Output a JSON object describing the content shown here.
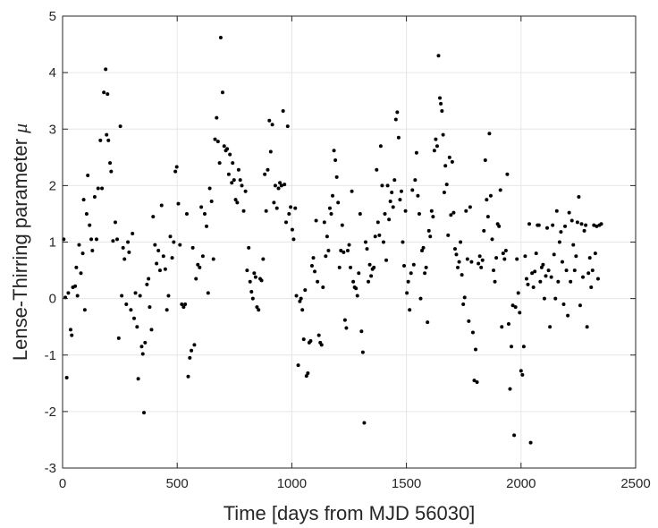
{
  "chart_data": {
    "type": "scatter",
    "xlabel": "Time [days from MJD 56030]",
    "ylabel": "Lense-Thirring parameter",
    "ylabel_symbol": "μ",
    "xlim": [
      0,
      2500
    ],
    "ylim": [
      -3,
      5
    ],
    "x_ticks": [
      "0",
      "500",
      "1000",
      "1500",
      "2000",
      "2500"
    ],
    "y_ticks": [
      "-3",
      "-2",
      "-1",
      "0",
      "1",
      "2",
      "3",
      "4",
      "5"
    ],
    "grid": true,
    "marker_color": "#000000",
    "points": [
      [
        5,
        1.05
      ],
      [
        12,
        0.02
      ],
      [
        18,
        -1.4
      ],
      [
        25,
        0.1
      ],
      [
        35,
        -0.55
      ],
      [
        40,
        -0.65
      ],
      [
        45,
        0.2
      ],
      [
        55,
        0.22
      ],
      [
        60,
        0.55
      ],
      [
        65,
        0.05
      ],
      [
        72,
        0.95
      ],
      [
        80,
        0.45
      ],
      [
        88,
        0.8
      ],
      [
        92,
        1.75
      ],
      [
        97,
        -0.2
      ],
      [
        105,
        1.5
      ],
      [
        110,
        2.18
      ],
      [
        118,
        1.3
      ],
      [
        125,
        1.05
      ],
      [
        130,
        0.85
      ],
      [
        140,
        1.8
      ],
      [
        148,
        1.05
      ],
      [
        155,
        1.95
      ],
      [
        165,
        2.8
      ],
      [
        172,
        1.95
      ],
      [
        180,
        3.65
      ],
      [
        188,
        4.06
      ],
      [
        192,
        2.9
      ],
      [
        196,
        3.62
      ],
      [
        200,
        2.8
      ],
      [
        207,
        2.4
      ],
      [
        212,
        2.25
      ],
      [
        220,
        1.02
      ],
      [
        230,
        1.35
      ],
      [
        238,
        1.05
      ],
      [
        245,
        -0.7
      ],
      [
        252,
        3.05
      ],
      [
        258,
        0.05
      ],
      [
        264,
        0.9
      ],
      [
        270,
        0.7
      ],
      [
        278,
        -0.1
      ],
      [
        285,
        1.0
      ],
      [
        290,
        0.82
      ],
      [
        298,
        -0.2
      ],
      [
        305,
        1.15
      ],
      [
        312,
        -0.35
      ],
      [
        318,
        0.1
      ],
      [
        325,
        -0.5
      ],
      [
        330,
        -1.42
      ],
      [
        338,
        0.05
      ],
      [
        345,
        -0.85
      ],
      [
        350,
        -0.98
      ],
      [
        355,
        -2.02
      ],
      [
        360,
        -0.78
      ],
      [
        368,
        0.25
      ],
      [
        375,
        0.35
      ],
      [
        380,
        -0.15
      ],
      [
        388,
        -0.55
      ],
      [
        395,
        1.45
      ],
      [
        403,
        0.95
      ],
      [
        410,
        0.62
      ],
      [
        418,
        0.85
      ],
      [
        425,
        0.5
      ],
      [
        432,
        1.65
      ],
      [
        440,
        0.75
      ],
      [
        448,
        0.52
      ],
      [
        455,
        -0.2
      ],
      [
        462,
        0.05
      ],
      [
        470,
        1.1
      ],
      [
        478,
        0.72
      ],
      [
        485,
        1.0
      ],
      [
        492,
        2.25
      ],
      [
        498,
        2.33
      ],
      [
        505,
        1.68
      ],
      [
        512,
        0.95
      ],
      [
        520,
        -0.1
      ],
      [
        528,
        -0.15
      ],
      [
        535,
        -0.1
      ],
      [
        542,
        1.5
      ],
      [
        548,
        -1.38
      ],
      [
        555,
        -1.05
      ],
      [
        562,
        -0.92
      ],
      [
        568,
        0.9
      ],
      [
        575,
        -0.82
      ],
      [
        582,
        0.35
      ],
      [
        590,
        0.6
      ],
      [
        598,
        0.55
      ],
      [
        605,
        1.62
      ],
      [
        612,
        0.75
      ],
      [
        620,
        1.5
      ],
      [
        628,
        1.28
      ],
      [
        635,
        0.1
      ],
      [
        642,
        1.95
      ],
      [
        650,
        1.72
      ],
      [
        658,
        0.7
      ],
      [
        665,
        2.82
      ],
      [
        672,
        3.2
      ],
      [
        678,
        2.78
      ],
      [
        685,
        2.4
      ],
      [
        690,
        4.62
      ],
      [
        698,
        3.65
      ],
      [
        705,
        2.7
      ],
      [
        712,
        2.62
      ],
      [
        718,
        2.65
      ],
      [
        725,
        2.2
      ],
      [
        730,
        2.55
      ],
      [
        738,
        2.05
      ],
      [
        742,
        2.4
      ],
      [
        748,
        2.1
      ],
      [
        755,
        1.75
      ],
      [
        762,
        1.7
      ],
      [
        768,
        2.28
      ],
      [
        775,
        2.1
      ],
      [
        782,
        2.0
      ],
      [
        790,
        1.55
      ],
      [
        798,
        1.9
      ],
      [
        805,
        0.5
      ],
      [
        812,
        0.9
      ],
      [
        818,
        0.3
      ],
      [
        824,
        0.12
      ],
      [
        830,
        0.0
      ],
      [
        836,
        0.45
      ],
      [
        842,
        0.38
      ],
      [
        848,
        -0.15
      ],
      [
        855,
        -0.2
      ],
      [
        862,
        0.35
      ],
      [
        868,
        0.32
      ],
      [
        875,
        0.7
      ],
      [
        882,
        2.2
      ],
      [
        888,
        1.55
      ],
      [
        895,
        2.28
      ],
      [
        902,
        3.15
      ],
      [
        908,
        2.6
      ],
      [
        915,
        3.08
      ],
      [
        922,
        1.7
      ],
      [
        928,
        2.0
      ],
      [
        935,
        1.6
      ],
      [
        942,
        1.95
      ],
      [
        948,
        2.05
      ],
      [
        955,
        2.0
      ],
      [
        962,
        3.32
      ],
      [
        968,
        2.02
      ],
      [
        975,
        1.35
      ],
      [
        982,
        3.05
      ],
      [
        988,
        1.5
      ],
      [
        995,
        1.62
      ],
      [
        1002,
        1.22
      ],
      [
        1008,
        1.05
      ],
      [
        1015,
        1.6
      ],
      [
        1020,
        0.05
      ],
      [
        1028,
        -1.18
      ],
      [
        1035,
        -0.05
      ],
      [
        1040,
        0.0
      ],
      [
        1046,
        -0.2
      ],
      [
        1052,
        -0.72
      ],
      [
        1058,
        0.15
      ],
      [
        1064,
        -1.37
      ],
      [
        1070,
        -1.32
      ],
      [
        1076,
        -0.78
      ],
      [
        1082,
        -0.75
      ],
      [
        1088,
        0.58
      ],
      [
        1094,
        0.72
      ],
      [
        1100,
        0.48
      ],
      [
        1106,
        1.38
      ],
      [
        1112,
        0.3
      ],
      [
        1118,
        -0.65
      ],
      [
        1124,
        -0.78
      ],
      [
        1130,
        -0.82
      ],
      [
        1136,
        0.2
      ],
      [
        1142,
        1.35
      ],
      [
        1148,
        0.75
      ],
      [
        1154,
        1.1
      ],
      [
        1160,
        0.85
      ],
      [
        1166,
        1.6
      ],
      [
        1172,
        1.5
      ],
      [
        1178,
        1.82
      ],
      [
        1184,
        2.62
      ],
      [
        1190,
        2.45
      ],
      [
        1196,
        2.15
      ],
      [
        1202,
        1.7
      ],
      [
        1208,
        0.55
      ],
      [
        1214,
        0.85
      ],
      [
        1220,
        1.3
      ],
      [
        1226,
        0.82
      ],
      [
        1232,
        -0.38
      ],
      [
        1238,
        -0.52
      ],
      [
        1244,
        0.85
      ],
      [
        1250,
        0.95
      ],
      [
        1256,
        0.55
      ],
      [
        1262,
        1.9
      ],
      [
        1268,
        0.3
      ],
      [
        1274,
        0.2
      ],
      [
        1280,
        0.18
      ],
      [
        1286,
        0.05
      ],
      [
        1292,
        0.45
      ],
      [
        1298,
        1.5
      ],
      [
        1304,
        -0.58
      ],
      [
        1310,
        -0.95
      ],
      [
        1316,
        -2.2
      ],
      [
        1322,
        1.0
      ],
      [
        1328,
        0.88
      ],
      [
        1334,
        0.3
      ],
      [
        1340,
        0.6
      ],
      [
        1346,
        0.4
      ],
      [
        1352,
        0.52
      ],
      [
        1358,
        0.55
      ],
      [
        1364,
        1.1
      ],
      [
        1370,
        2.28
      ],
      [
        1376,
        1.35
      ],
      [
        1382,
        1.12
      ],
      [
        1388,
        2.7
      ],
      [
        1394,
        2.0
      ],
      [
        1400,
        1.0
      ],
      [
        1406,
        1.5
      ],
      [
        1412,
        0.68
      ],
      [
        1418,
        2.0
      ],
      [
        1424,
        1.4
      ],
      [
        1430,
        1.72
      ],
      [
        1436,
        1.88
      ],
      [
        1442,
        1.62
      ],
      [
        1448,
        2.1
      ],
      [
        1454,
        3.17
      ],
      [
        1460,
        3.3
      ],
      [
        1466,
        2.85
      ],
      [
        1472,
        1.75
      ],
      [
        1478,
        1.9
      ],
      [
        1484,
        1.0
      ],
      [
        1490,
        0.58
      ],
      [
        1496,
        1.55
      ],
      [
        1502,
        0.1
      ],
      [
        1508,
        0.3
      ],
      [
        1514,
        -0.2
      ],
      [
        1520,
        0.45
      ],
      [
        1526,
        1.92
      ],
      [
        1532,
        0.6
      ],
      [
        1538,
        2.1
      ],
      [
        1544,
        2.58
      ],
      [
        1550,
        1.82
      ],
      [
        1556,
        1.5
      ],
      [
        1562,
        0.0
      ],
      [
        1568,
        0.85
      ],
      [
        1574,
        0.9
      ],
      [
        1580,
        0.45
      ],
      [
        1586,
        0.55
      ],
      [
        1592,
        -0.42
      ],
      [
        1598,
        1.2
      ],
      [
        1604,
        1.1
      ],
      [
        1610,
        1.55
      ],
      [
        1616,
        1.45
      ],
      [
        1622,
        2.62
      ],
      [
        1628,
        2.82
      ],
      [
        1634,
        2.7
      ],
      [
        1640,
        4.3
      ],
      [
        1646,
        3.55
      ],
      [
        1650,
        3.45
      ],
      [
        1655,
        3.32
      ],
      [
        1660,
        2.9
      ],
      [
        1665,
        1.88
      ],
      [
        1670,
        2.35
      ],
      [
        1676,
        2.02
      ],
      [
        1682,
        1.12
      ],
      [
        1688,
        2.5
      ],
      [
        1694,
        1.48
      ],
      [
        1700,
        2.42
      ],
      [
        1706,
        1.52
      ],
      [
        1712,
        0.88
      ],
      [
        1718,
        0.78
      ],
      [
        1724,
        0.55
      ],
      [
        1730,
        0.65
      ],
      [
        1736,
        1.0
      ],
      [
        1742,
        0.42
      ],
      [
        1748,
        -0.1
      ],
      [
        1754,
        0.02
      ],
      [
        1760,
        1.55
      ],
      [
        1766,
        0.7
      ],
      [
        1772,
        -0.4
      ],
      [
        1778,
        1.62
      ],
      [
        1784,
        0.65
      ],
      [
        1790,
        -0.6
      ],
      [
        1796,
        -1.45
      ],
      [
        1802,
        -0.9
      ],
      [
        1808,
        -1.48
      ],
      [
        1814,
        0.62
      ],
      [
        1820,
        0.75
      ],
      [
        1826,
        0.55
      ],
      [
        1832,
        0.68
      ],
      [
        1838,
        1.2
      ],
      [
        1844,
        2.45
      ],
      [
        1850,
        1.75
      ],
      [
        1856,
        1.45
      ],
      [
        1862,
        2.92
      ],
      [
        1868,
        1.82
      ],
      [
        1874,
        1.05
      ],
      [
        1880,
        0.5
      ],
      [
        1886,
        0.3
      ],
      [
        1892,
        0.72
      ],
      [
        1898,
        1.32
      ],
      [
        1904,
        1.28
      ],
      [
        1910,
        1.92
      ],
      [
        1916,
        -0.5
      ],
      [
        1922,
        0.8
      ],
      [
        1928,
        0.7
      ],
      [
        1934,
        0.85
      ],
      [
        1940,
        2.2
      ],
      [
        1946,
        -0.45
      ],
      [
        1952,
        -1.6
      ],
      [
        1958,
        -0.85
      ],
      [
        1964,
        -0.12
      ],
      [
        1970,
        -2.42
      ],
      [
        1976,
        -0.15
      ],
      [
        1982,
        0.7
      ],
      [
        1988,
        0.1
      ],
      [
        1994,
        -0.25
      ],
      [
        2000,
        -1.28
      ],
      [
        2006,
        -1.35
      ],
      [
        2012,
        -0.85
      ],
      [
        2018,
        0.75
      ],
      [
        2024,
        0.35
      ],
      [
        2030,
        0.25
      ],
      [
        2036,
        1.32
      ],
      [
        2042,
        -2.55
      ],
      [
        2048,
        0.45
      ],
      [
        2054,
        0.2
      ],
      [
        2060,
        0.48
      ],
      [
        2066,
        0.8
      ],
      [
        2072,
        1.3
      ],
      [
        2078,
        1.3
      ],
      [
        2084,
        0.3
      ],
      [
        2090,
        0.55
      ],
      [
        2096,
        0.6
      ],
      [
        2102,
        0.0
      ],
      [
        2108,
        0.4
      ],
      [
        2114,
        1.25
      ],
      [
        2120,
        0.5
      ],
      [
        2126,
        -0.5
      ],
      [
        2132,
        0.38
      ],
      [
        2138,
        1.3
      ],
      [
        2144,
        0.78
      ],
      [
        2150,
        0.0
      ],
      [
        2156,
        1.55
      ],
      [
        2162,
        0.3
      ],
      [
        2168,
        1.0
      ],
      [
        2174,
        1.18
      ],
      [
        2180,
        0.65
      ],
      [
        2186,
        -0.1
      ],
      [
        2192,
        1.28
      ],
      [
        2198,
        0.5
      ],
      [
        2204,
        -0.3
      ],
      [
        2210,
        1.52
      ],
      [
        2216,
        0.3
      ],
      [
        2222,
        1.38
      ],
      [
        2228,
        0.95
      ],
      [
        2234,
        0.5
      ],
      [
        2240,
        0.75
      ],
      [
        2246,
        1.35
      ],
      [
        2252,
        1.8
      ],
      [
        2258,
        -0.12
      ],
      [
        2264,
        1.32
      ],
      [
        2270,
        0.38
      ],
      [
        2276,
        1.2
      ],
      [
        2282,
        1.3
      ],
      [
        2288,
        -0.5
      ],
      [
        2294,
        0.45
      ],
      [
        2300,
        0.72
      ],
      [
        2306,
        0.2
      ],
      [
        2312,
        0.5
      ],
      [
        2318,
        1.3
      ],
      [
        2324,
        0.8
      ],
      [
        2330,
        1.28
      ],
      [
        2336,
        0.35
      ],
      [
        2342,
        1.3
      ],
      [
        2350,
        1.32
      ]
    ]
  }
}
